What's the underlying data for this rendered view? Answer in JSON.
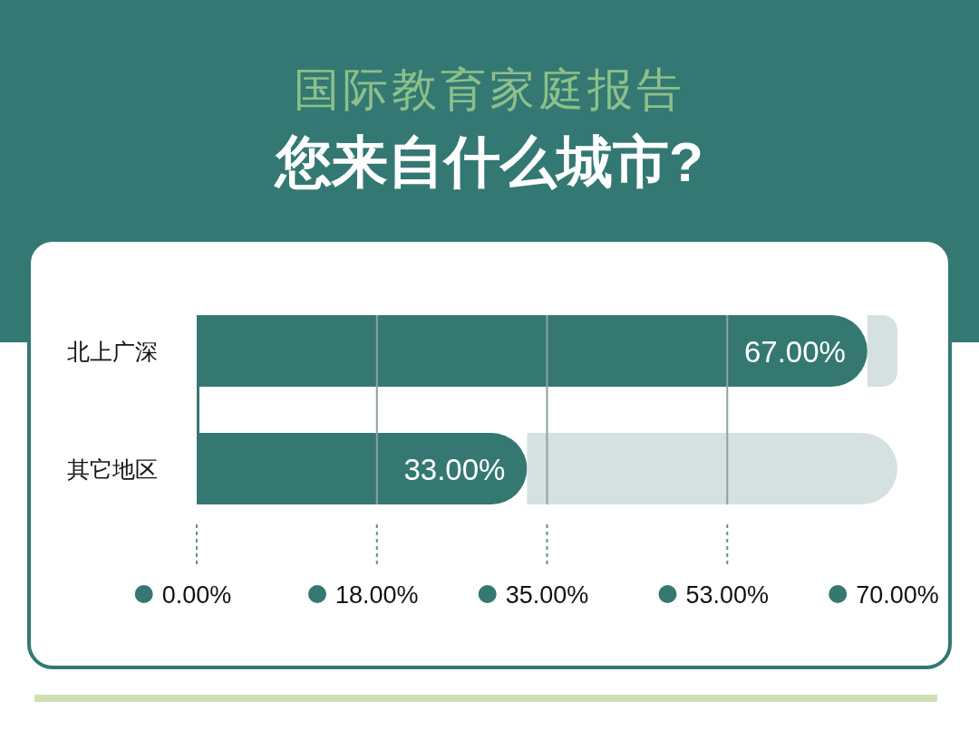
{
  "chart_data": {
    "type": "bar",
    "orientation": "horizontal",
    "stacked": true,
    "title": "国际教育家庭报告",
    "subtitle": "您来自什么城市?",
    "categories": [
      "北上广深",
      "其它地区"
    ],
    "series": [
      {
        "color": "#357872",
        "values": [
          67,
          33
        ],
        "value_labels": [
          "67.00%",
          "33.00%"
        ]
      },
      {
        "color": "#d5e1e0",
        "values": [
          3,
          37
        ]
      }
    ],
    "xlim": [
      0,
      70
    ],
    "xticks": [
      {
        "value": 0,
        "label": "0.00%"
      },
      {
        "value": 18,
        "label": "18.00%"
      },
      {
        "value": 35,
        "label": "35.00%"
      },
      {
        "value": 53,
        "label": "53.00%"
      },
      {
        "value": 70,
        "label": "70.00%"
      }
    ],
    "grid": "x"
  }
}
